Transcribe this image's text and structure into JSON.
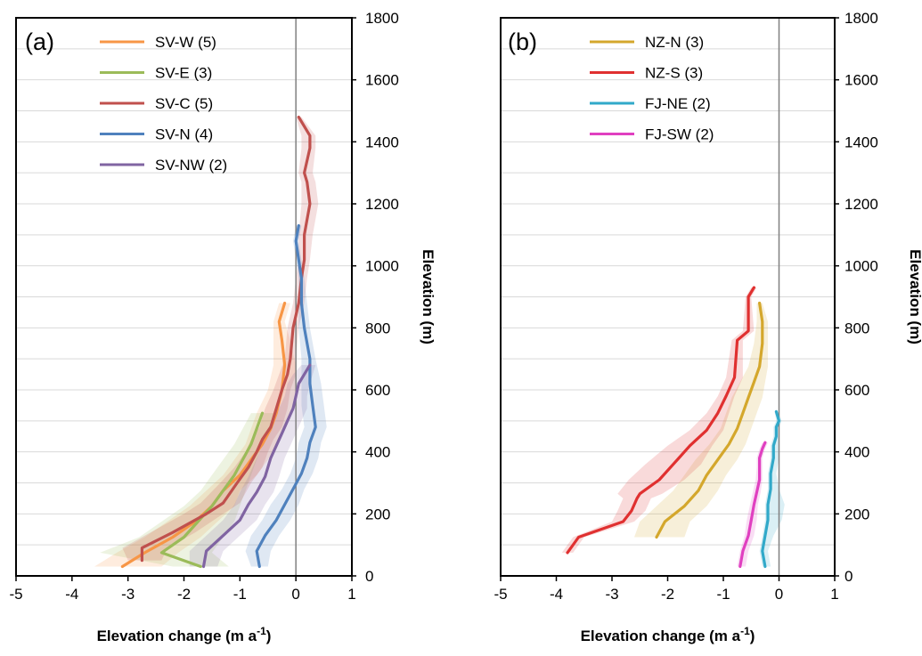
{
  "chart_data": [
    {
      "type": "line",
      "panel_label": "(a)",
      "xlabel_main": "Elevation change (m a",
      "xlabel_sup": "-1",
      "xlabel_end": ")",
      "ylabel": "Elevation (m)",
      "xlim": [
        -5,
        1
      ],
      "ylim": [
        0,
        1800
      ],
      "xticks": [
        -5,
        -4,
        -3,
        -2,
        -1,
        0,
        1
      ],
      "yticks": [
        0,
        200,
        400,
        600,
        800,
        1000,
        1200,
        1400,
        1600,
        1800
      ],
      "grid": "horizontal",
      "legend_position": "top-left",
      "series": [
        {
          "name": "SV-W (5)",
          "color": "#f79646",
          "x": [
            -3.1,
            -2.7,
            -2.2,
            -1.8,
            -1.5,
            -1.3,
            -1.0,
            -0.8,
            -0.6,
            -0.45,
            -0.35,
            -0.25,
            -0.2,
            -0.25,
            -0.3,
            -0.2
          ],
          "y": [
            30,
            75,
            125,
            175,
            225,
            275,
            325,
            375,
            425,
            475,
            525,
            600,
            680,
            760,
            820,
            880
          ],
          "band_lo": [
            -3.6,
            -3.2,
            -2.7,
            -2.3,
            -1.9,
            -1.6,
            -1.3,
            -1.1,
            -0.9,
            -0.8,
            -0.7,
            -0.5,
            -0.4,
            -0.4,
            -0.4,
            -0.3
          ],
          "band_hi": [
            -2.4,
            -2.1,
            -1.7,
            -1.4,
            -1.1,
            -1.0,
            -0.7,
            -0.5,
            -0.35,
            -0.2,
            -0.1,
            0.0,
            0.0,
            -0.1,
            -0.2,
            -0.1
          ]
        },
        {
          "name": "SV-E (3)",
          "color": "#9bbb59",
          "x": [
            -1.7,
            -2.4,
            -2.0,
            -1.75,
            -1.5,
            -1.3,
            -1.1,
            -0.95,
            -0.8,
            -0.7,
            -0.6
          ],
          "y": [
            30,
            75,
            125,
            175,
            225,
            275,
            325,
            375,
            425,
            475,
            525
          ],
          "band_lo": [
            -2.2,
            -3.5,
            -2.8,
            -2.4,
            -2.0,
            -1.7,
            -1.5,
            -1.3,
            -1.1,
            -0.95,
            -0.8
          ],
          "band_hi": [
            -1.2,
            -1.5,
            -1.3,
            -1.1,
            -1.0,
            -0.9,
            -0.8,
            -0.7,
            -0.6,
            -0.45,
            -0.4
          ]
        },
        {
          "name": "SV-C (5)",
          "color": "#c0504d",
          "x": [
            -2.75,
            -2.75,
            -2.2,
            -1.6,
            -1.3,
            -1.05,
            -0.85,
            -0.7,
            -0.6,
            -0.45,
            -0.35,
            -0.25,
            -0.15,
            -0.1,
            -0.05,
            0.05,
            0.1,
            0.15,
            0.15,
            0.25,
            0.2,
            0.15,
            0.25,
            0.25,
            0.05
          ],
          "y": [
            50,
            90,
            140,
            200,
            235,
            300,
            350,
            400,
            440,
            480,
            540,
            600,
            650,
            700,
            800,
            880,
            960,
            1020,
            1100,
            1200,
            1270,
            1300,
            1380,
            1420,
            1480
          ],
          "band_lo": [
            -3.0,
            -3.1,
            -2.6,
            -2.0,
            -1.7,
            -1.35,
            -1.1,
            -0.9,
            -0.8,
            -0.65,
            -0.55,
            -0.4,
            -0.3,
            -0.2,
            -0.15,
            -0.05,
            0.0,
            0.05,
            0.05,
            0.1,
            0.1,
            0.05,
            0.1,
            0.1,
            0.0
          ],
          "band_hi": [
            -2.4,
            -2.3,
            -1.8,
            -1.3,
            -1.0,
            -0.8,
            -0.6,
            -0.5,
            -0.4,
            -0.25,
            -0.15,
            -0.1,
            0.0,
            0.0,
            0.05,
            0.15,
            0.2,
            0.25,
            0.3,
            0.4,
            0.35,
            0.3,
            0.35,
            0.35,
            0.1
          ]
        },
        {
          "name": "SV-N (4)",
          "color": "#4f81bd",
          "x": [
            -0.65,
            -0.7,
            -0.55,
            -0.35,
            -0.2,
            -0.05,
            0.1,
            0.2,
            0.25,
            0.35,
            0.3,
            0.25,
            0.25,
            0.15,
            0.1,
            0.1,
            0.05,
            0.0,
            0.05
          ],
          "y": [
            30,
            80,
            130,
            180,
            230,
            280,
            330,
            380,
            430,
            480,
            550,
            620,
            700,
            800,
            880,
            960,
            1020,
            1080,
            1130
          ],
          "band_lo": [
            -0.8,
            -0.9,
            -0.8,
            -0.6,
            -0.45,
            -0.25,
            -0.1,
            0.0,
            0.05,
            0.15,
            0.1,
            0.1,
            0.1,
            0.05,
            0.05,
            0.05,
            0.0,
            -0.05,
            0.0
          ],
          "band_hi": [
            -0.5,
            -0.45,
            -0.3,
            -0.1,
            0.05,
            0.15,
            0.3,
            0.4,
            0.45,
            0.55,
            0.5,
            0.45,
            0.35,
            0.25,
            0.2,
            0.15,
            0.1,
            0.05,
            0.1
          ]
        },
        {
          "name": "SV-NW (2)",
          "color": "#8064a2",
          "x": [
            -1.65,
            -1.6,
            -1.3,
            -1.0,
            -0.85,
            -0.7,
            -0.55,
            -0.45,
            -0.35,
            -0.25,
            -0.15,
            -0.05,
            0.0,
            0.05,
            0.15,
            0.25
          ],
          "y": [
            30,
            80,
            130,
            180,
            230,
            270,
            320,
            380,
            420,
            460,
            500,
            540,
            580,
            620,
            650,
            680
          ],
          "band_lo": [
            -1.9,
            -1.9,
            -1.6,
            -1.3,
            -1.1,
            -1.0,
            -0.85,
            -0.7,
            -0.6,
            -0.5,
            -0.4,
            -0.3,
            -0.2,
            -0.15,
            -0.05,
            0.1
          ],
          "band_hi": [
            -1.4,
            -1.3,
            -1.0,
            -0.7,
            -0.55,
            -0.4,
            -0.3,
            -0.2,
            -0.1,
            0.0,
            0.1,
            0.2,
            0.2,
            0.25,
            0.3,
            0.35
          ]
        }
      ]
    },
    {
      "type": "line",
      "panel_label": "(b)",
      "xlabel_main": "Elevation change (m a",
      "xlabel_sup": "-1",
      "xlabel_end": ")",
      "ylabel": "Elevation (m)",
      "xlim": [
        -5,
        1
      ],
      "ylim": [
        0,
        1800
      ],
      "xticks": [
        -5,
        -4,
        -3,
        -2,
        -1,
        0,
        1
      ],
      "yticks": [
        0,
        200,
        400,
        600,
        800,
        1000,
        1200,
        1400,
        1600,
        1800
      ],
      "grid": "horizontal",
      "legend_position": "top-left",
      "series": [
        {
          "name": "NZ-N (3)",
          "color": "#d4a72c",
          "x": [
            -2.2,
            -2.05,
            -1.7,
            -1.45,
            -1.3,
            -1.1,
            -0.9,
            -0.75,
            -0.65,
            -0.55,
            -0.45,
            -0.35,
            -0.3,
            -0.3,
            -0.35
          ],
          "y": [
            125,
            175,
            225,
            275,
            325,
            375,
            425,
            475,
            525,
            575,
            625,
            675,
            750,
            820,
            880
          ],
          "band_lo": [
            -2.6,
            -2.5,
            -2.2,
            -1.9,
            -1.7,
            -1.5,
            -1.25,
            -1.05,
            -0.95,
            -0.85,
            -0.7,
            -0.55,
            -0.45,
            -0.4,
            -0.4
          ],
          "band_hi": [
            -1.7,
            -1.6,
            -1.3,
            -1.1,
            -0.95,
            -0.75,
            -0.6,
            -0.5,
            -0.4,
            -0.3,
            -0.25,
            -0.2,
            -0.2,
            -0.2,
            -0.3
          ]
        },
        {
          "name": "NZ-S (3)",
          "color": "#e03030",
          "x": [
            -3.8,
            -3.6,
            -2.8,
            -2.65,
            -2.55,
            -2.5,
            -2.15,
            -1.9,
            -1.6,
            -1.3,
            -1.1,
            -0.95,
            -0.8,
            -0.75,
            -0.55,
            -0.55,
            -0.45
          ],
          "y": [
            75,
            125,
            175,
            210,
            250,
            265,
            310,
            360,
            420,
            470,
            525,
            580,
            640,
            760,
            790,
            900,
            930
          ],
          "band_lo": [
            -3.9,
            -3.7,
            -3.0,
            -2.9,
            -2.8,
            -2.9,
            -2.7,
            -2.4,
            -2.0,
            -1.6,
            -1.3,
            -1.1,
            -0.95,
            -0.85,
            -0.65,
            -0.6,
            -0.5
          ],
          "band_hi": [
            -3.7,
            -3.5,
            -2.6,
            -2.4,
            -2.3,
            -2.1,
            -1.7,
            -1.4,
            -1.2,
            -1.0,
            -0.9,
            -0.8,
            -0.65,
            -0.65,
            -0.45,
            -0.5,
            -0.4
          ]
        },
        {
          "name": "FJ-NE (2)",
          "color": "#31a9c9",
          "x": [
            -0.25,
            -0.3,
            -0.25,
            -0.2,
            -0.2,
            -0.15,
            -0.15,
            -0.1,
            -0.1,
            -0.05,
            -0.05,
            0.0,
            -0.05
          ],
          "y": [
            30,
            80,
            130,
            180,
            230,
            280,
            330,
            380,
            420,
            450,
            480,
            500,
            530
          ],
          "band_lo": [
            -0.3,
            -0.35,
            -0.3,
            -0.25,
            -0.25,
            -0.2,
            -0.2,
            -0.15,
            -0.15,
            -0.1,
            -0.1,
            -0.05,
            -0.08
          ],
          "band_hi": [
            -0.15,
            -0.2,
            -0.1,
            0.05,
            0.1,
            0.0,
            -0.05,
            0.0,
            0.0,
            0.0,
            0.0,
            0.05,
            -0.02
          ]
        },
        {
          "name": "FJ-SW (2)",
          "color": "#e040c0",
          "x": [
            -0.7,
            -0.65,
            -0.55,
            -0.5,
            -0.45,
            -0.4,
            -0.35,
            -0.35,
            -0.35,
            -0.3,
            -0.25
          ],
          "y": [
            30,
            80,
            130,
            180,
            230,
            270,
            310,
            350,
            380,
            410,
            430
          ],
          "band_lo": [
            -0.75,
            -0.7,
            -0.62,
            -0.58,
            -0.52,
            -0.47,
            -0.42,
            -0.4,
            -0.4,
            -0.35,
            -0.3
          ],
          "band_hi": [
            -0.6,
            -0.55,
            -0.45,
            -0.4,
            -0.38,
            -0.33,
            -0.3,
            -0.3,
            -0.3,
            -0.25,
            -0.2
          ]
        }
      ]
    }
  ]
}
